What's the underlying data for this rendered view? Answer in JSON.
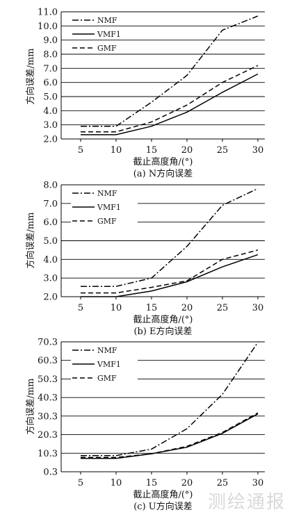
{
  "watermark": "测绘通报",
  "chart_data": [
    {
      "type": "line",
      "caption": "(a) N方向误差",
      "xlabel": "截止高度角/(°)",
      "ylabel": "方向误差/mm",
      "categories": [
        5,
        10,
        15,
        20,
        25,
        30
      ],
      "ylim": [
        2.0,
        11.0
      ],
      "yticks": [
        "2.0",
        "3.0",
        "4.0",
        "5.0",
        "6.0",
        "7.0",
        "8.0",
        "9.0",
        "10.0",
        "11.0"
      ],
      "grid": true,
      "legend": "top-left",
      "series": [
        {
          "name": "NMF",
          "style": "dashdot",
          "values": [
            2.9,
            2.9,
            4.6,
            6.5,
            9.7,
            10.7
          ]
        },
        {
          "name": "VMF1",
          "style": "solid",
          "values": [
            2.3,
            2.3,
            2.9,
            3.9,
            5.3,
            6.6
          ]
        },
        {
          "name": "GMF",
          "style": "dashed",
          "values": [
            2.5,
            2.5,
            3.2,
            4.4,
            6.0,
            7.2
          ]
        }
      ]
    },
    {
      "type": "line",
      "caption": "(b) E方向误差",
      "xlabel": "截止高度角/(°)",
      "ylabel": "方向误差/mm",
      "categories": [
        5,
        10,
        15,
        20,
        25,
        30
      ],
      "ylim": [
        2.0,
        8.0
      ],
      "yticks": [
        "2.0",
        "3.0",
        "4.0",
        "5.0",
        "6.0",
        "7.0",
        "8.0"
      ],
      "grid": true,
      "legend": "top-left",
      "series": [
        {
          "name": "NMF",
          "style": "dashdot",
          "values": [
            2.55,
            2.55,
            3.0,
            4.7,
            6.9,
            7.8
          ]
        },
        {
          "name": "VMF1",
          "style": "solid",
          "values": [
            2.0,
            2.0,
            2.3,
            2.8,
            3.6,
            4.25
          ]
        },
        {
          "name": "GMF",
          "style": "dashed",
          "values": [
            2.2,
            2.2,
            2.5,
            2.85,
            4.0,
            4.5
          ]
        }
      ]
    },
    {
      "type": "line",
      "caption": "(c) U方向误差",
      "xlabel": "截止高度角/(°)",
      "ylabel": "方向误差/mm",
      "categories": [
        5,
        10,
        15,
        20,
        25,
        30
      ],
      "ylim": [
        0.3,
        70.3
      ],
      "yticks": [
        "0.3",
        "10.3",
        "20.3",
        "30.3",
        "40.3",
        "50.3",
        "60.3",
        "70.3"
      ],
      "grid": true,
      "legend": "top-left",
      "series": [
        {
          "name": "NMF",
          "style": "dashdot",
          "values": [
            9.0,
            9.0,
            12.5,
            23.5,
            42.0,
            70.0
          ]
        },
        {
          "name": "VMF1",
          "style": "solid",
          "values": [
            7.5,
            7.5,
            10.0,
            13.5,
            21.0,
            31.5
          ]
        },
        {
          "name": "GMF",
          "style": "dashed",
          "values": [
            8.0,
            8.0,
            10.0,
            14.0,
            21.5,
            32.0
          ]
        }
      ]
    }
  ]
}
